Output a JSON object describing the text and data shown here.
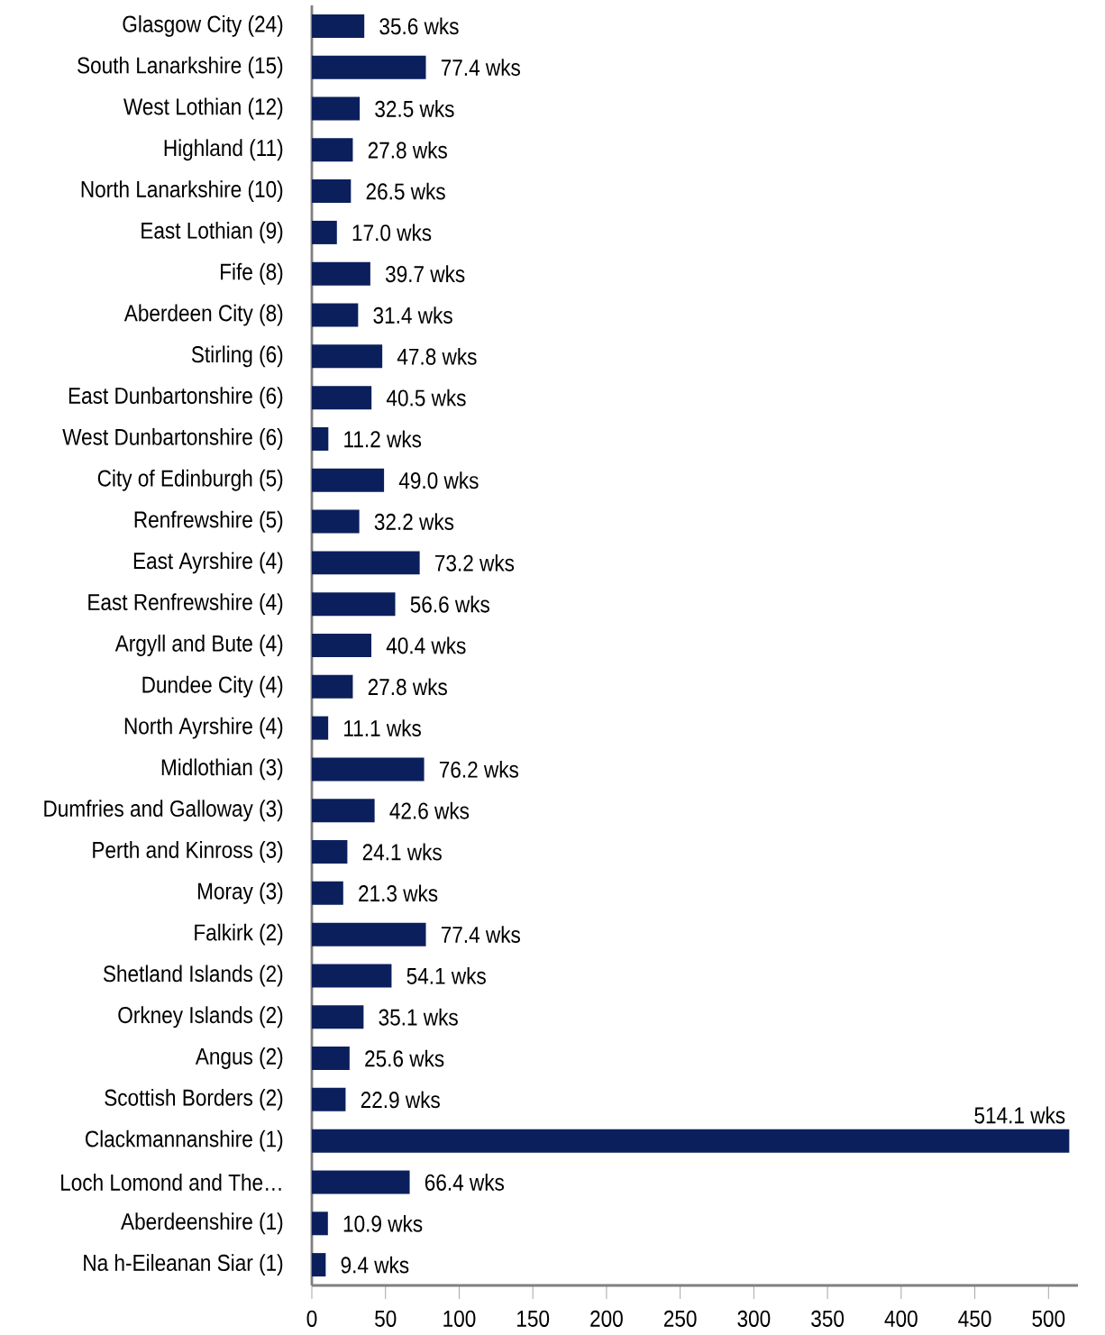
{
  "chart_data": {
    "type": "bar",
    "orientation": "horizontal",
    "categories": [
      "Glasgow City (24)",
      "South Lanarkshire (15)",
      "West Lothian (12)",
      "Highland (11)",
      "North Lanarkshire (10)",
      "East Lothian (9)",
      "Fife (8)",
      "Aberdeen City (8)",
      "Stirling (6)",
      "East Dunbartonshire (6)",
      "West Dunbartonshire (6)",
      "City of Edinburgh (5)",
      "Renfrewshire (5)",
      "East Ayrshire (4)",
      "East Renfrewshire (4)",
      "Argyll and Bute (4)",
      "Dundee City (4)",
      "North Ayrshire (4)",
      "Midlothian (3)",
      "Dumfries and Galloway (3)",
      "Perth and Kinross (3)",
      "Moray (3)",
      "Falkirk (2)",
      "Shetland Islands (2)",
      "Orkney Islands (2)",
      "Angus (2)",
      "Scottish Borders (2)",
      "Clackmannanshire (1)",
      "Loch Lomond and The…",
      "Aberdeenshire (1)",
      "Na h-Eileanan Siar (1)"
    ],
    "values": [
      35.6,
      77.4,
      32.5,
      27.8,
      26.5,
      17.0,
      39.7,
      31.4,
      47.8,
      40.5,
      11.2,
      49.0,
      32.2,
      73.2,
      56.6,
      40.4,
      27.8,
      11.1,
      76.2,
      42.6,
      24.1,
      21.3,
      77.4,
      54.1,
      35.1,
      25.6,
      22.9,
      514.1,
      66.4,
      10.9,
      9.4
    ],
    "value_labels": [
      "35.6 wks",
      "77.4 wks",
      "32.5 wks",
      "27.8 wks",
      "26.5 wks",
      "17.0 wks",
      "39.7 wks",
      "31.4 wks",
      "47.8 wks",
      "40.5 wks",
      "11.2 wks",
      "49.0 wks",
      "32.2 wks",
      "73.2 wks",
      "56.6 wks",
      "40.4 wks",
      "27.8 wks",
      "11.1 wks",
      "76.2 wks",
      "42.6 wks",
      "24.1 wks",
      "21.3 wks",
      "77.4 wks",
      "54.1 wks",
      "35.1 wks",
      "25.6 wks",
      "22.9 wks",
      "514.1 wks",
      "66.4 wks",
      "10.9 wks",
      "9.4 wks"
    ],
    "color": "#0b1f5c",
    "xlim": [
      0,
      520
    ],
    "xticks": [
      0,
      50,
      100,
      150,
      200,
      250,
      300,
      350,
      400,
      450,
      500
    ]
  }
}
